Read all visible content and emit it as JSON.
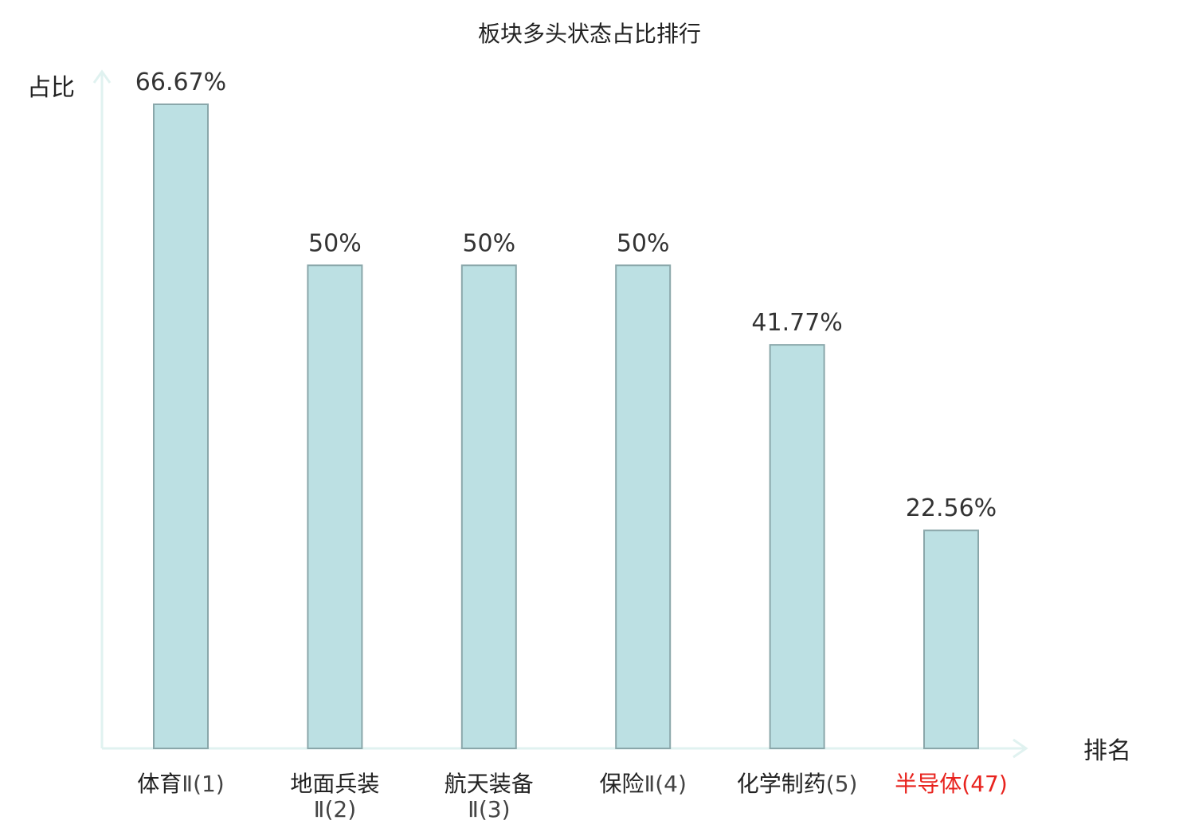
{
  "chart_data": {
    "type": "bar",
    "title": "板块多头状态占比排行",
    "ylabel": "占比",
    "xlabel": "排名",
    "ylim": [
      0,
      68
    ],
    "grid": false,
    "categories": [
      {
        "name": "体育",
        "suffix": "Ⅱ(1)",
        "value": 66.67,
        "label": "66.67%",
        "highlight": false
      },
      {
        "name": "地面兵装",
        "suffix": "Ⅱ(2)",
        "value": 50,
        "label": "50%",
        "highlight": false
      },
      {
        "name": "航天装备",
        "suffix": "Ⅱ(3)",
        "value": 50,
        "label": "50%",
        "highlight": false
      },
      {
        "name": "保险",
        "suffix": "Ⅱ(4)",
        "value": 50,
        "label": "50%",
        "highlight": false
      },
      {
        "name": "化学制药",
        "suffix": "(5)",
        "value": 41.77,
        "label": "41.77%",
        "highlight": false
      },
      {
        "name": "半导体",
        "suffix": "(47)",
        "value": 22.56,
        "label": "22.56%",
        "highlight": true
      }
    ],
    "colors": {
      "bar_fill": "#bce0e3",
      "bar_stroke": "#8aa7aa",
      "axis": "#e0f2f0",
      "highlight": "#e8231e",
      "text": "#222222"
    }
  }
}
